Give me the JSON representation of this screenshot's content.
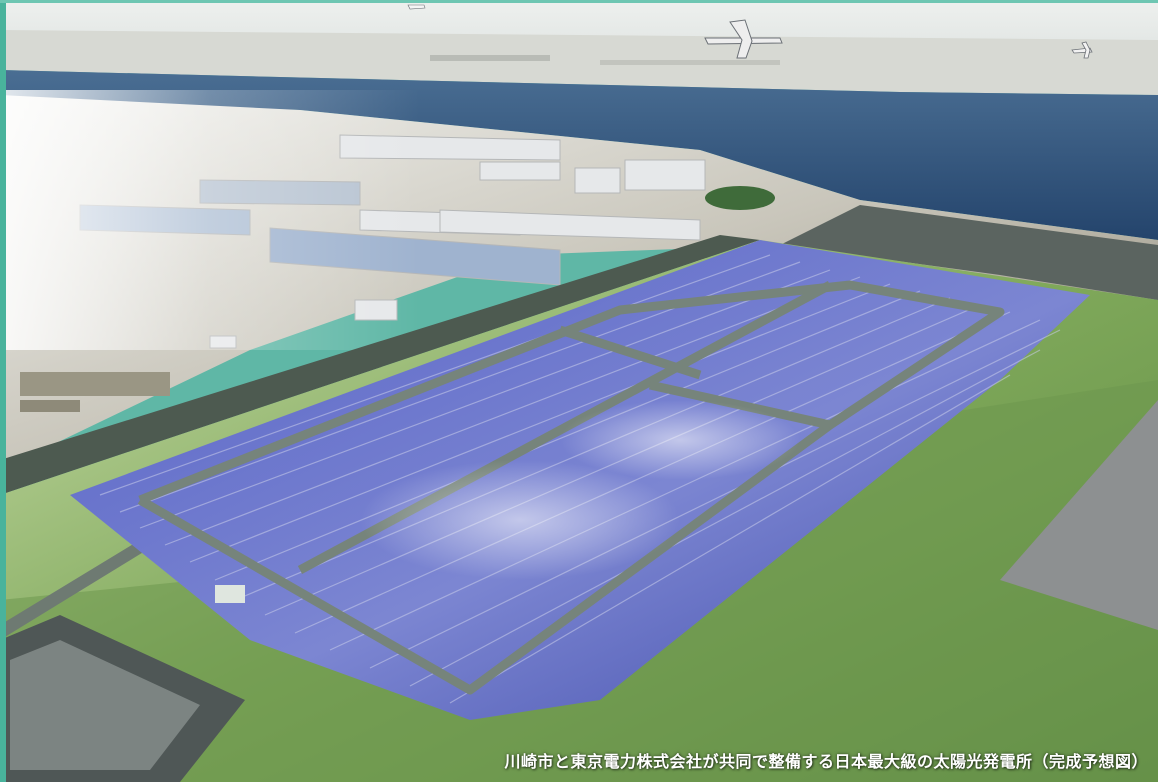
{
  "caption": "川崎市と東京電力株式会社が共同で整備する日本最大級の太陽光発電所（完成予想図）",
  "colors": {
    "sky": "#e9ecec",
    "sea": "#2e4f79",
    "grass": "#6f9a4f",
    "panels": "#4a57b8",
    "road": "#6e7a72",
    "frame": "#49b39c"
  }
}
